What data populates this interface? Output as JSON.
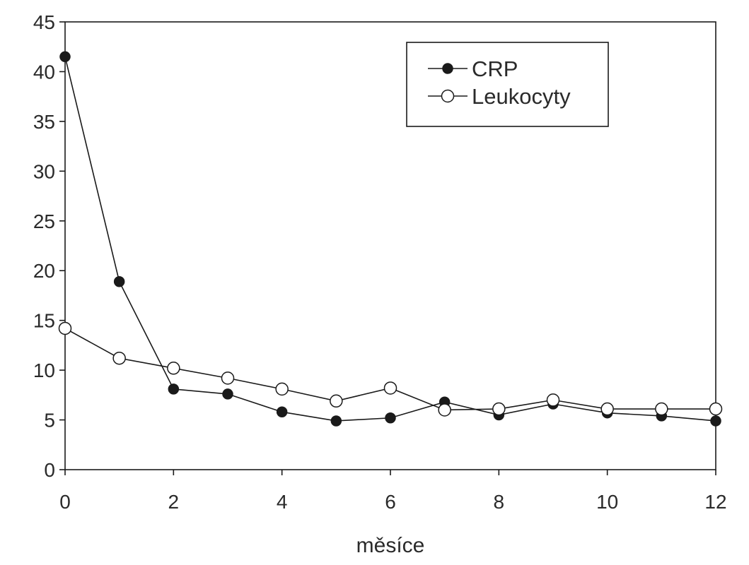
{
  "chart_data": {
    "type": "line",
    "title": "",
    "xlabel": "měsíce",
    "ylabel": "",
    "xlim": [
      0,
      12
    ],
    "ylim": [
      0,
      45
    ],
    "x_ticks": [
      0,
      2,
      4,
      6,
      8,
      10,
      12
    ],
    "y_ticks": [
      0,
      5,
      10,
      15,
      20,
      25,
      30,
      35,
      40,
      45
    ],
    "grid": false,
    "legend_position": "top-right",
    "x": [
      0,
      1,
      2,
      3,
      4,
      5,
      6,
      7,
      8,
      9,
      10,
      11,
      12
    ],
    "series": [
      {
        "name": "CRP",
        "marker": "filled-circle",
        "color": "#1a1a1a",
        "values": [
          41.5,
          18.9,
          8.1,
          7.6,
          5.8,
          4.9,
          5.2,
          6.8,
          5.5,
          6.6,
          5.7,
          5.4,
          4.9
        ]
      },
      {
        "name": "Leukocyty",
        "marker": "open-circle",
        "color": "#1a1a1a",
        "values": [
          14.2,
          11.2,
          10.2,
          9.2,
          8.1,
          6.9,
          8.2,
          6.0,
          6.1,
          7.0,
          6.1,
          6.1,
          6.1
        ]
      }
    ]
  }
}
